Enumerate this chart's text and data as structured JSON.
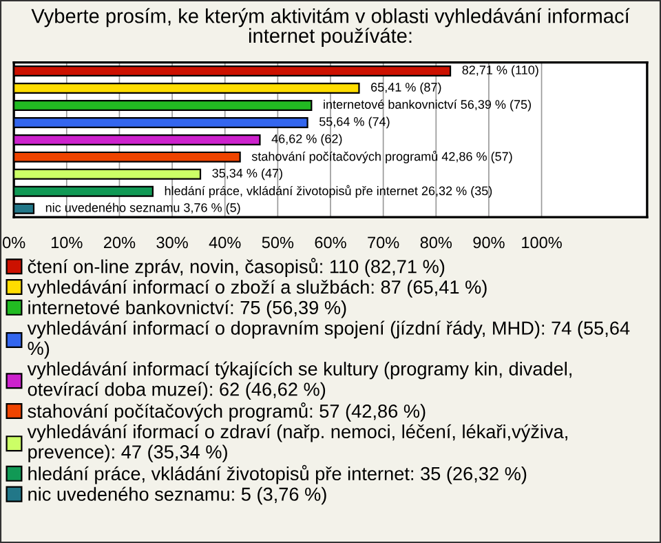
{
  "chart_data": {
    "type": "bar",
    "orientation": "horizontal",
    "title": "Vyberte prosím, ke kterým aktivitám v oblasti vyhledávání informací internet používáte:",
    "categories": [
      null,
      null,
      null,
      null,
      null,
      null,
      null,
      null,
      null
    ],
    "series": [
      {
        "name": "čtení on-line zpráv, novin, časopisů: 110 (82,71 %)",
        "color": "#cc1100",
        "values": [
          82.71,
          null,
          null,
          null,
          null,
          null,
          null,
          null,
          null
        ],
        "value_labels": [
          "82,71 % (110)",
          null,
          null,
          null,
          null,
          null,
          null,
          null,
          null
        ]
      },
      {
        "name": "vyhledávání informací o zboží a službách: 87 (65,41 %)",
        "color": "#ffdd00",
        "values": [
          null,
          65.41,
          null,
          null,
          null,
          null,
          null,
          null,
          null
        ],
        "value_labels": [
          null,
          "65,41 % (87)",
          null,
          null,
          null,
          null,
          null,
          null,
          null
        ]
      },
      {
        "name": "internetové bankovnictví: 75 (56,39 %)",
        "color": "#22bb22",
        "values": [
          null,
          null,
          56.39,
          null,
          null,
          null,
          null,
          null,
          null
        ],
        "value_labels": [
          null,
          null,
          "internetové bankovnictví 56,39 % (75)",
          null,
          null,
          null,
          null,
          null,
          null
        ]
      },
      {
        "name": "vyhledávání informací o dopravním spojení (jízdní řády, MHD): 74 (55,64 %)",
        "color": "#3366ee",
        "values": [
          null,
          null,
          null,
          55.64,
          null,
          null,
          null,
          null,
          null
        ],
        "value_labels": [
          null,
          null,
          null,
          "55,64 % (74)",
          null,
          null,
          null,
          null,
          null
        ]
      },
      {
        "name": "vyhledávání informací týkajících se kultury (programy kin, divadel, otevírací doba muzeí): 62 (46,62 %)",
        "color": "#cc22cc",
        "values": [
          null,
          null,
          null,
          null,
          46.62,
          null,
          null,
          null,
          null
        ],
        "value_labels": [
          null,
          null,
          null,
          null,
          "46,62 % (62)",
          null,
          null,
          null,
          null
        ]
      },
      {
        "name": "stahování počítačových programů: 57 (42,86 %)",
        "color": "#ee4400",
        "values": [
          null,
          null,
          null,
          null,
          null,
          42.86,
          null,
          null,
          null
        ],
        "value_labels": [
          null,
          null,
          null,
          null,
          null,
          "stahování počítačových programů 42,86 % (57)",
          null,
          null,
          null
        ]
      },
      {
        "name": "vyhledávání iformací o zdraví (nařp. nemoci, léčení, lékaři,výživa, prevence): 47 (35,34 %)",
        "color": "#ccff66",
        "values": [
          null,
          null,
          null,
          null,
          null,
          null,
          35.34,
          null,
          null
        ],
        "value_labels": [
          null,
          null,
          null,
          null,
          null,
          null,
          "35,34 % (47)",
          null,
          null
        ]
      },
      {
        "name": "hledání práce, vkládání životopisů pře internet: 35 (26,32 %)",
        "color": "#119955",
        "values": [
          null,
          null,
          null,
          null,
          null,
          null,
          null,
          26.32,
          null
        ],
        "value_labels": [
          null,
          null,
          null,
          null,
          null,
          null,
          null,
          "hledání práce, vkládání životopisů pře internet 26,32 % (35)",
          null
        ]
      },
      {
        "name": "nic uvedeného seznamu: 5 (3,76 %)",
        "color": "#227788",
        "values": [
          null,
          null,
          null,
          null,
          null,
          null,
          null,
          null,
          3.76
        ],
        "value_labels": [
          null,
          null,
          null,
          null,
          null,
          null,
          null,
          null,
          "nic uvedeného seznamu 3,76 % (5)"
        ]
      }
    ],
    "xlim": [
      0,
      120
    ],
    "xticks": [
      {
        "value": 0,
        "label": "0%"
      },
      {
        "value": 10,
        "label": "10%"
      },
      {
        "value": 20,
        "label": "20%"
      },
      {
        "value": 30,
        "label": "30%"
      },
      {
        "value": 40,
        "label": "40%"
      },
      {
        "value": 50,
        "label": "50%"
      },
      {
        "value": 60,
        "label": "60%"
      },
      {
        "value": 70,
        "label": "70%"
      },
      {
        "value": 80,
        "label": "80%"
      },
      {
        "value": 90,
        "label": "90%"
      },
      {
        "value": 100,
        "label": "100%"
      }
    ],
    "grid": "x",
    "legend": "bottom",
    "tick_labels": "x"
  }
}
